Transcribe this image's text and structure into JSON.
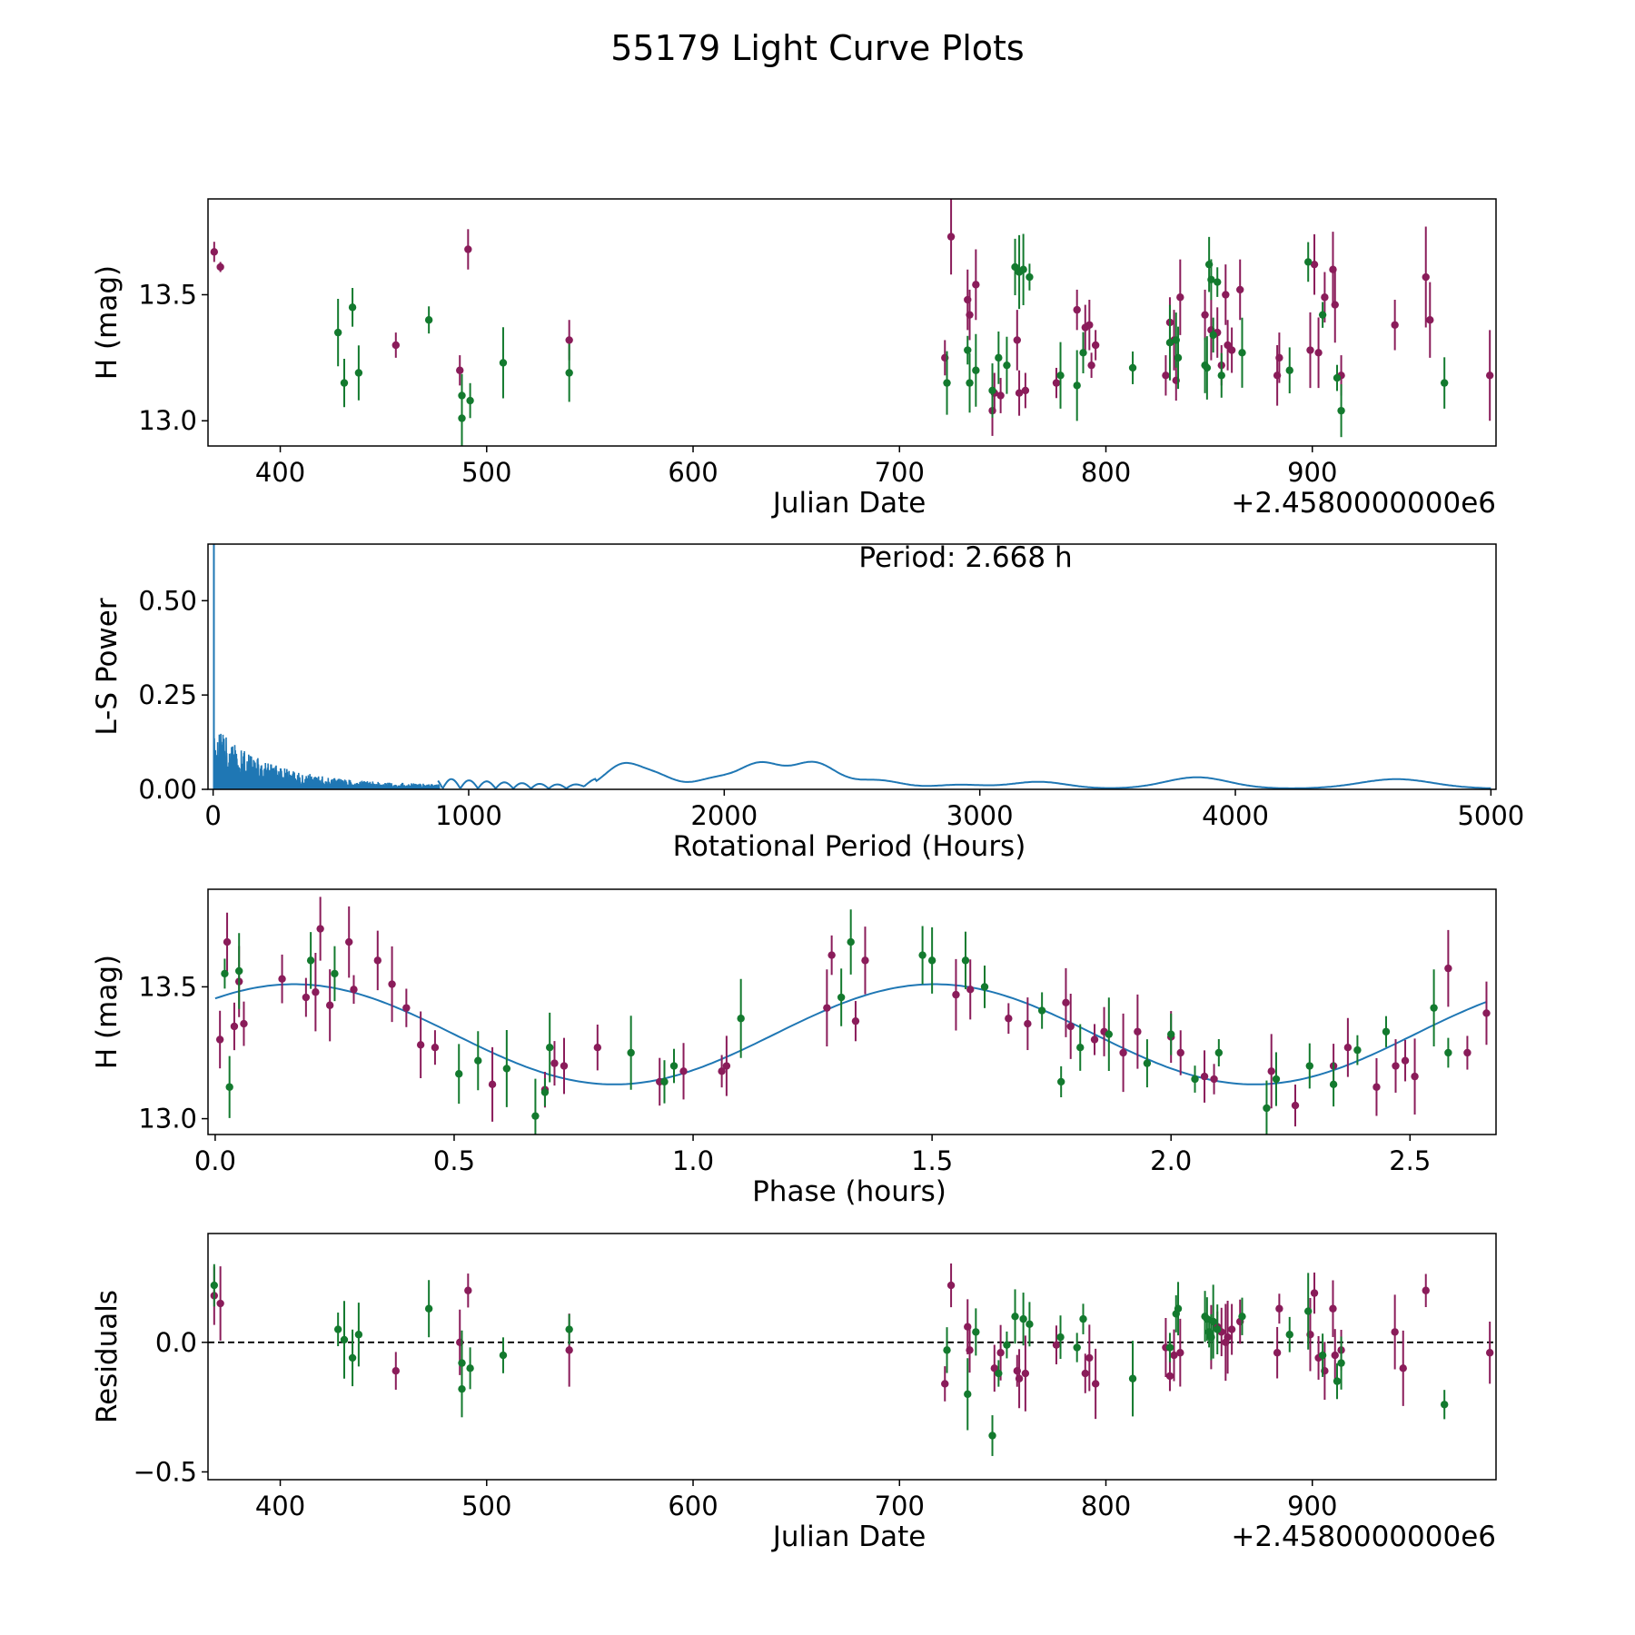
{
  "suptitle": "55179 Light Curve Plots",
  "colors": {
    "series_a": "#8a1c5a",
    "series_b": "#137a2e",
    "fit": "#1f77b4",
    "axes": "#000000",
    "zero_line": "#000000"
  },
  "chart_data": [
    {
      "type": "scatter",
      "name": "light-curve",
      "ylabel": "H (mag)",
      "xlabel": "Julian Date",
      "x_offset_label": "+2.4580000000e6",
      "xlim": [
        365,
        989
      ],
      "ylim": [
        12.9,
        13.88
      ],
      "xticks": [
        400,
        500,
        600,
        700,
        800,
        900
      ],
      "xtick_labels": [
        "400",
        "500",
        "600",
        "700",
        "800",
        "900"
      ],
      "yticks": [
        13.0,
        13.5
      ],
      "ytick_labels": [
        "13.0",
        "13.5"
      ],
      "series": [
        {
          "name": "observations A",
          "color": "#8a1c5a",
          "x": [
            368,
            371,
            456,
            487,
            491,
            540,
            722,
            725,
            733,
            734,
            737,
            745,
            746,
            749,
            757,
            758,
            761,
            776,
            786,
            790,
            792,
            793,
            795,
            829,
            831,
            833,
            834,
            836,
            848,
            851,
            854,
            856,
            858,
            859,
            861,
            865,
            883,
            884,
            899,
            901,
            903,
            906,
            910,
            911,
            914,
            940,
            955,
            957,
            986
          ],
          "y": [
            13.67,
            13.61,
            13.3,
            13.2,
            13.68,
            13.32,
            13.25,
            13.73,
            13.48,
            13.42,
            13.54,
            13.04,
            13.11,
            13.1,
            13.32,
            13.11,
            13.12,
            13.15,
            13.44,
            13.37,
            13.38,
            13.22,
            13.3,
            13.18,
            13.39,
            13.32,
            13.16,
            13.49,
            13.42,
            13.36,
            13.35,
            13.22,
            13.5,
            13.3,
            13.28,
            13.52,
            13.18,
            13.25,
            13.28,
            13.62,
            13.27,
            13.49,
            13.6,
            13.46,
            13.18,
            13.38,
            13.57,
            13.4,
            13.18
          ],
          "err": [
            0.04,
            0.02,
            0.05,
            0.06,
            0.08,
            0.08,
            0.07,
            0.15,
            0.12,
            0.1,
            0.14,
            0.1,
            0.08,
            0.07,
            0.12,
            0.09,
            0.07,
            0.06,
            0.08,
            0.09,
            0.1,
            0.05,
            0.06,
            0.08,
            0.1,
            0.12,
            0.08,
            0.15,
            0.1,
            0.12,
            0.1,
            0.08,
            0.12,
            0.1,
            0.09,
            0.12,
            0.12,
            0.1,
            0.15,
            0.12,
            0.14,
            0.1,
            0.15,
            0.15,
            0.08,
            0.1,
            0.2,
            0.15,
            0.18
          ]
        },
        {
          "name": "observations B",
          "color": "#137a2e",
          "x": [
            428,
            431,
            435,
            438,
            472,
            488,
            488,
            492,
            508,
            540,
            723,
            733,
            734,
            737,
            745,
            748,
            752,
            756,
            758,
            760,
            763,
            778,
            786,
            789,
            813,
            831,
            834,
            835,
            848,
            849,
            850,
            851,
            852,
            854,
            856,
            866,
            889,
            898,
            905,
            912,
            914,
            964
          ],
          "y": [
            13.35,
            13.15,
            13.45,
            13.19,
            13.4,
            13.1,
            13.01,
            13.08,
            13.23,
            13.19,
            13.15,
            13.28,
            13.15,
            13.2,
            13.12,
            13.25,
            13.22,
            13.61,
            13.59,
            13.6,
            13.57,
            13.18,
            13.14,
            13.27,
            13.21,
            13.31,
            13.32,
            13.25,
            13.22,
            13.21,
            13.62,
            13.56,
            13.34,
            13.55,
            13.18,
            13.27,
            13.2,
            13.63,
            13.42,
            13.17,
            13.04,
            13.15
          ]
        }
      ]
    },
    {
      "type": "line",
      "name": "lomb-scargle-periodogram",
      "ylabel": "L-S Power",
      "xlabel": "Rotational Period (Hours)",
      "annotation": "Period: 2.668 h",
      "xlim": [
        -20,
        5020
      ],
      "ylim": [
        0,
        0.65
      ],
      "xticks": [
        0,
        1000,
        2000,
        3000,
        4000,
        5000
      ],
      "xtick_labels": [
        "0",
        "1000",
        "2000",
        "3000",
        "4000",
        "5000"
      ],
      "yticks": [
        0,
        0.25,
        0.5
      ],
      "ytick_labels": [
        "0.00",
        "0.25",
        "0.50"
      ],
      "peaks": [
        {
          "period": 1600,
          "power": 0.06
        },
        {
          "period": 1730,
          "power": 0.035
        },
        {
          "period": 1960,
          "power": 0.025
        },
        {
          "period": 2140,
          "power": 0.065
        },
        {
          "period": 2350,
          "power": 0.068
        },
        {
          "period": 2600,
          "power": 0.022
        },
        {
          "period": 2920,
          "power": 0.01
        },
        {
          "period": 3230,
          "power": 0.018
        },
        {
          "period": 3850,
          "power": 0.03
        },
        {
          "period": 4630,
          "power": 0.025
        }
      ]
    },
    {
      "type": "scatter",
      "name": "phased-light-curve",
      "ylabel": "H (mag)",
      "xlabel": "Phase (hours)",
      "xlim": [
        -0.015,
        2.68
      ],
      "ylim": [
        12.94,
        13.87
      ],
      "xticks": [
        0,
        0.5,
        1.0,
        1.5,
        2.0,
        2.5
      ],
      "xtick_labels": [
        "0.0",
        "0.5",
        "1.0",
        "1.5",
        "2.0",
        "2.5"
      ],
      "yticks": [
        13.0,
        13.5
      ],
      "ytick_labels": [
        "13.0",
        "13.5"
      ],
      "fit": {
        "mean": 13.32,
        "amplitude": 0.19,
        "period": 1.34,
        "phase_peak": 0.165
      },
      "series": [
        {
          "name": "phased A",
          "color": "#8a1c5a",
          "x": [
            0.01,
            0.025,
            0.04,
            0.05,
            0.06,
            0.14,
            0.19,
            0.21,
            0.22,
            0.24,
            0.28,
            0.29,
            0.34,
            0.37,
            0.4,
            0.43,
            0.46,
            0.58,
            0.69,
            0.71,
            0.73,
            0.8,
            0.93,
            0.98,
            1.06,
            1.07,
            1.28,
            1.29,
            1.34,
            1.36,
            1.55,
            1.58,
            1.66,
            1.7,
            1.78,
            1.79,
            1.84,
            1.86,
            1.9,
            1.93,
            2.0,
            2.02,
            2.07,
            2.09,
            2.21,
            2.26,
            2.34,
            2.37,
            2.43,
            2.47,
            2.49,
            2.51,
            2.58,
            2.62,
            2.66
          ],
          "y": [
            13.3,
            13.67,
            13.35,
            13.52,
            13.36,
            13.53,
            13.46,
            13.48,
            13.72,
            13.43,
            13.67,
            13.49,
            13.6,
            13.51,
            13.42,
            13.28,
            13.27,
            13.13,
            13.11,
            13.21,
            13.2,
            13.27,
            13.14,
            13.18,
            13.18,
            13.2,
            13.42,
            13.62,
            13.37,
            13.6,
            13.47,
            13.49,
            13.38,
            13.36,
            13.44,
            13.35,
            13.3,
            13.33,
            13.25,
            13.33,
            13.31,
            13.25,
            13.16,
            13.15,
            13.18,
            13.05,
            13.2,
            13.27,
            13.12,
            13.2,
            13.22,
            13.16,
            13.57,
            13.25,
            13.4
          ]
        },
        {
          "name": "phased B",
          "color": "#137a2e",
          "x": [
            0.02,
            0.03,
            0.05,
            0.2,
            0.25,
            0.51,
            0.55,
            0.61,
            0.67,
            0.69,
            0.7,
            0.87,
            0.94,
            0.96,
            1.1,
            1.31,
            1.33,
            1.48,
            1.5,
            1.57,
            1.61,
            1.73,
            1.77,
            1.81,
            1.87,
            1.95,
            2.0,
            2.05,
            2.1,
            2.2,
            2.22,
            2.29,
            2.34,
            2.39,
            2.45,
            2.55,
            2.58
          ],
          "y": [
            13.55,
            13.12,
            13.56,
            13.6,
            13.55,
            13.17,
            13.22,
            13.19,
            13.01,
            13.1,
            13.27,
            13.25,
            13.14,
            13.2,
            13.38,
            13.46,
            13.67,
            13.62,
            13.6,
            13.6,
            13.5,
            13.41,
            13.14,
            13.27,
            13.32,
            13.21,
            13.32,
            13.15,
            13.25,
            13.04,
            13.15,
            13.2,
            13.13,
            13.26,
            13.33,
            13.42,
            13.25
          ]
        }
      ]
    },
    {
      "type": "scatter",
      "name": "residuals",
      "ylabel": "Residuals",
      "xlabel": "Julian Date",
      "x_offset_label": "+2.4580000000e6",
      "xlim": [
        365,
        989
      ],
      "ylim": [
        -0.53,
        0.42
      ],
      "xticks": [
        400,
        500,
        600,
        700,
        800,
        900
      ],
      "xtick_labels": [
        "400",
        "500",
        "600",
        "700",
        "800",
        "900"
      ],
      "yticks": [
        -0.5,
        0.0
      ],
      "ytick_labels": [
        "−0.5",
        "0.0"
      ],
      "zero_line": 0,
      "series": [
        {
          "name": "residuals A",
          "color": "#8a1c5a",
          "x": [
            368,
            371,
            456,
            487,
            491,
            540,
            722,
            725,
            733,
            734,
            746,
            749,
            757,
            758,
            761,
            776,
            790,
            792,
            795,
            829,
            831,
            833,
            836,
            851,
            854,
            856,
            858,
            859,
            861,
            865,
            883,
            884,
            899,
            901,
            903,
            906,
            910,
            911,
            914,
            940,
            944,
            955,
            986
          ],
          "y": [
            0.18,
            0.15,
            -0.11,
            0.0,
            0.2,
            -0.03,
            -0.16,
            0.22,
            0.06,
            -0.03,
            -0.1,
            -0.04,
            -0.11,
            -0.14,
            -0.12,
            -0.01,
            -0.12,
            -0.06,
            -0.16,
            -0.02,
            -0.13,
            -0.05,
            -0.04,
            0.02,
            0.06,
            0.04,
            0.0,
            0.02,
            0.05,
            0.08,
            -0.04,
            0.13,
            0.03,
            0.19,
            -0.06,
            -0.11,
            0.13,
            -0.05,
            -0.03,
            0.04,
            -0.1,
            0.2,
            -0.04
          ]
        },
        {
          "name": "residuals B",
          "color": "#137a2e",
          "x": [
            368,
            428,
            431,
            435,
            438,
            472,
            488,
            488,
            492,
            508,
            540,
            723,
            733,
            737,
            745,
            748,
            752,
            756,
            760,
            763,
            778,
            786,
            789,
            813,
            831,
            834,
            835,
            848,
            849,
            850,
            851,
            852,
            854,
            866,
            889,
            898,
            905,
            912,
            914,
            964
          ],
          "y": [
            0.22,
            0.05,
            0.01,
            -0.06,
            0.03,
            0.13,
            -0.08,
            -0.18,
            -0.1,
            -0.05,
            0.05,
            -0.03,
            -0.2,
            0.04,
            -0.36,
            -0.12,
            -0.01,
            0.1,
            0.09,
            0.07,
            0.02,
            -0.02,
            0.09,
            -0.14,
            -0.02,
            0.11,
            0.13,
            0.1,
            0.09,
            0.04,
            0.02,
            0.08,
            0.05,
            0.1,
            0.03,
            0.12,
            -0.05,
            -0.15,
            -0.08,
            -0.24
          ]
        }
      ]
    }
  ]
}
